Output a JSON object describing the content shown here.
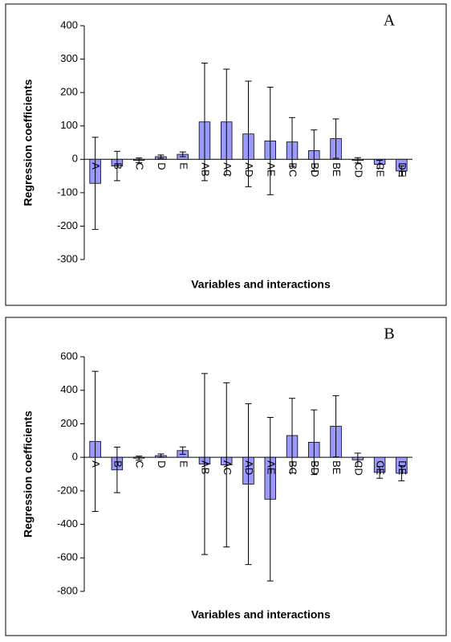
{
  "chart_data": [
    {
      "type": "bar",
      "panel_label": "A",
      "xlabel": "Variables and interactions",
      "ylabel": "Regression coefficients",
      "categories": [
        "A",
        "B",
        "C",
        "D",
        "E",
        "AB",
        "AC",
        "AD",
        "AE",
        "BC",
        "BD",
        "BE",
        "CD",
        "CE",
        "DE"
      ],
      "values": [
        -72,
        -20,
        -3,
        8,
        15,
        112,
        112,
        76,
        55,
        52,
        26,
        62,
        -3,
        -15,
        -35
      ],
      "errors": [
        138,
        44,
        7,
        5,
        7,
        176,
        158,
        158,
        161,
        73,
        62,
        59,
        8,
        12,
        15
      ],
      "color": "#9999ff",
      "ylim": [
        -300,
        400
      ],
      "yticks": [
        -300,
        -200,
        -100,
        0,
        100,
        200,
        300,
        400
      ]
    },
    {
      "type": "bar",
      "panel_label": "B",
      "xlabel": "Variables and interactions",
      "ylabel": "Regression coefficients",
      "categories": [
        "A",
        "B",
        "C",
        "D",
        "E",
        "AB",
        "AC",
        "AD",
        "AE",
        "BC",
        "BD",
        "BE",
        "CD",
        "CE",
        "DE"
      ],
      "values": [
        95,
        -75,
        -5,
        10,
        40,
        -40,
        -45,
        -160,
        -250,
        130,
        90,
        185,
        -15,
        -90,
        -95
      ],
      "errors": [
        418,
        136,
        12,
        10,
        22,
        540,
        490,
        480,
        488,
        222,
        193,
        183,
        40,
        35,
        45
      ],
      "color": "#9999ff",
      "ylim": [
        -800,
        600
      ],
      "yticks": [
        -800,
        -600,
        -400,
        -200,
        0,
        200,
        400,
        600
      ]
    }
  ]
}
